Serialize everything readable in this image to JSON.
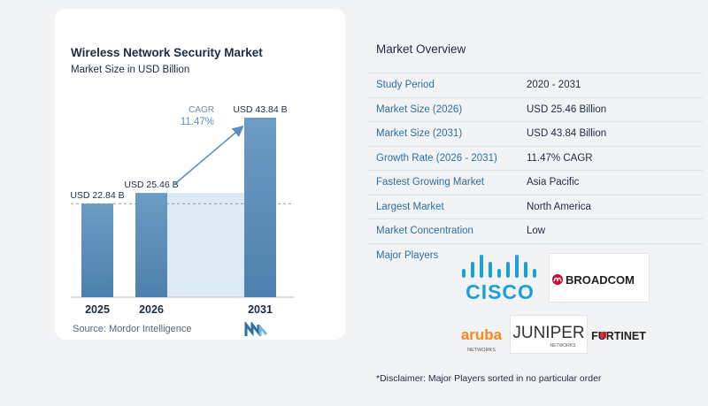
{
  "chart_data": {
    "type": "bar",
    "title": "Wireless Network Security Market",
    "subtitle": "Market Size in USD Billion",
    "categories": [
      "2025",
      "2026",
      "2031"
    ],
    "values": [
      22.84,
      25.46,
      43.84
    ],
    "value_labels": [
      "USD 22.84 B",
      "USD 25.46 B",
      "USD 43.84 B"
    ],
    "cagr_label": "CAGR",
    "cagr_value": "11.47%",
    "ylim": [
      0,
      45
    ],
    "grid": false
  },
  "source": "Source: Mordor Intelligence",
  "overview": {
    "title": "Market Overview",
    "rows": [
      {
        "key": "Study Period",
        "value": "2020 - 2031"
      },
      {
        "key": "Market Size (2026)",
        "value": "USD 25.46 Billion"
      },
      {
        "key": "Market Size (2031)",
        "value": "USD 43.84 Billion"
      },
      {
        "key": "Growth Rate (2026 - 2031)",
        "value": "11.47% CAGR"
      },
      {
        "key": "Fastest Growing Market",
        "value": "Asia Pacific"
      },
      {
        "key": "Largest Market",
        "value": "North America"
      },
      {
        "key": "Market Concentration",
        "value": "Low"
      }
    ]
  },
  "players": {
    "label": "Major Players",
    "cisco": "CISCO",
    "broadcom": "BROADCOM",
    "aruba": "aruba",
    "aruba_sub": "NETWORKS",
    "juniper": "JUNIPER",
    "juniper_sub": "NETWORKS",
    "fortinet": "FURTINET"
  },
  "disclaimer": "*Disclaimer: Major Players sorted in no particular order",
  "colors": {
    "bar_top": "#6d9cc4",
    "bar_bottom": "#4d80ad",
    "shade": "#dde9f4",
    "accent": "#5b8fc0",
    "key_text": "#2e6fa0",
    "cisco": "#1ba0d7",
    "broadcom_red": "#cc092f",
    "fortinet_red": "#d1121a",
    "aruba_orange": "#f28a1c"
  }
}
